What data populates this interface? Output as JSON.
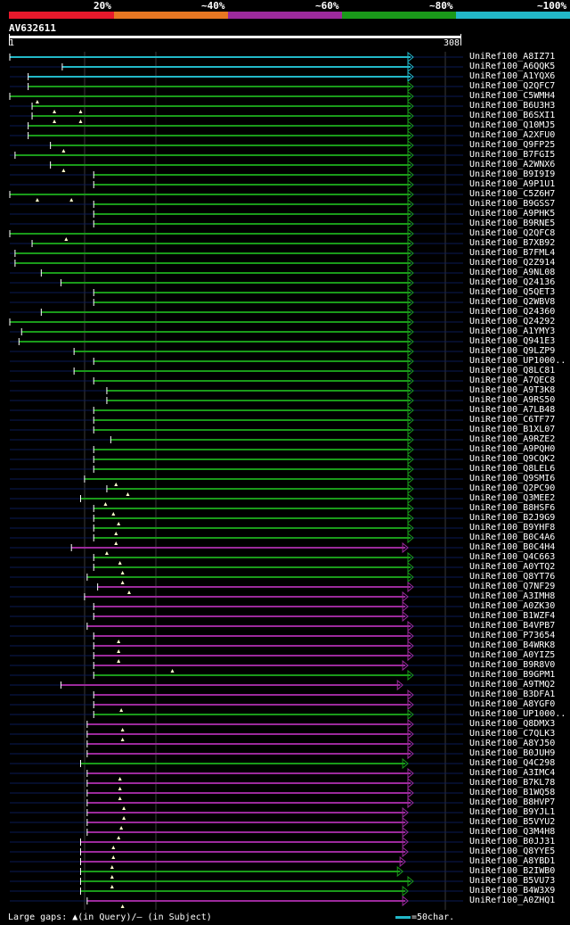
{
  "chart_data": {
    "type": "alignment-overview",
    "query": "AV632611",
    "query_start": 1,
    "query_end": 308,
    "legend": [
      {
        "label": "20%",
        "color": "#e8192c"
      },
      {
        "label": "~40%",
        "color": "#e87722"
      },
      {
        "label": "~60%",
        "color": "#9c2a9c"
      },
      {
        "label": "~80%",
        "color": "#1a9a1a"
      },
      {
        "label": "~100%",
        "color": "#22b8c8"
      }
    ],
    "hits": [
      {
        "name": "UniRef100_A8IZ71",
        "start": 1,
        "end": 308,
        "cls": 4,
        "marks": []
      },
      {
        "name": "UniRef100_A6QQK5",
        "start": 41,
        "end": 308,
        "cls": 4,
        "marks": []
      },
      {
        "name": "UniRef100_A1YQX6",
        "start": 15,
        "end": 308,
        "cls": 4,
        "marks": []
      },
      {
        "name": "UniRef100_Q2QFC7",
        "start": 15,
        "end": 308,
        "cls": 3,
        "marks": []
      },
      {
        "name": "UniRef100_C5WMH4",
        "start": 1,
        "end": 308,
        "cls": 3,
        "marks": [
          22
        ]
      },
      {
        "name": "UniRef100_B6U3H3",
        "start": 18,
        "end": 308,
        "cls": 3,
        "marks": [
          35,
          55
        ]
      },
      {
        "name": "UniRef100_B6SXI1",
        "start": 18,
        "end": 308,
        "cls": 3,
        "marks": [
          35,
          55
        ]
      },
      {
        "name": "UniRef100_Q10MJ5",
        "start": 15,
        "end": 308,
        "cls": 3,
        "marks": []
      },
      {
        "name": "UniRef100_A2XFU0",
        "start": 15,
        "end": 308,
        "cls": 3,
        "marks": []
      },
      {
        "name": "UniRef100_Q9FP25",
        "start": 32,
        "end": 308,
        "cls": 3,
        "marks": [
          42
        ]
      },
      {
        "name": "UniRef100_B7FGI5",
        "start": 5,
        "end": 308,
        "cls": 3,
        "marks": []
      },
      {
        "name": "UniRef100_A2WNX6",
        "start": 32,
        "end": 308,
        "cls": 3,
        "marks": [
          42
        ]
      },
      {
        "name": "UniRef100_B9I9I9",
        "start": 65,
        "end": 308,
        "cls": 3,
        "marks": []
      },
      {
        "name": "UniRef100_A9P1U1",
        "start": 65,
        "end": 308,
        "cls": 3,
        "marks": []
      },
      {
        "name": "UniRef100_C5Z6H7",
        "start": 1,
        "end": 308,
        "cls": 3,
        "marks": [
          22,
          48
        ]
      },
      {
        "name": "UniRef100_B9GSS7",
        "start": 65,
        "end": 308,
        "cls": 3,
        "marks": []
      },
      {
        "name": "UniRef100_A9PHK5",
        "start": 65,
        "end": 308,
        "cls": 3,
        "marks": []
      },
      {
        "name": "UniRef100_B9RNE5",
        "start": 65,
        "end": 308,
        "cls": 3,
        "marks": []
      },
      {
        "name": "UniRef100_Q2QFC8",
        "start": 1,
        "end": 308,
        "cls": 3,
        "marks": [
          44
        ]
      },
      {
        "name": "UniRef100_B7XB92",
        "start": 18,
        "end": 308,
        "cls": 3,
        "marks": []
      },
      {
        "name": "UniRef100_B7FML4",
        "start": 5,
        "end": 308,
        "cls": 3,
        "marks": []
      },
      {
        "name": "UniRef100_Q2Z914",
        "start": 5,
        "end": 308,
        "cls": 3,
        "marks": []
      },
      {
        "name": "UniRef100_A9NL08",
        "start": 25,
        "end": 308,
        "cls": 3,
        "marks": []
      },
      {
        "name": "UniRef100_Q24136",
        "start": 40,
        "end": 308,
        "cls": 3,
        "marks": []
      },
      {
        "name": "UniRef100_Q5QET3",
        "start": 65,
        "end": 308,
        "cls": 3,
        "marks": []
      },
      {
        "name": "UniRef100_Q2WBV8",
        "start": 65,
        "end": 308,
        "cls": 3,
        "marks": []
      },
      {
        "name": "UniRef100_Q24360",
        "start": 25,
        "end": 308,
        "cls": 3,
        "marks": []
      },
      {
        "name": "UniRef100_Q24292",
        "start": 1,
        "end": 308,
        "cls": 3,
        "marks": []
      },
      {
        "name": "UniRef100_A1YMY3",
        "start": 10,
        "end": 308,
        "cls": 3,
        "marks": []
      },
      {
        "name": "UniRef100_Q941E3",
        "start": 8,
        "end": 308,
        "cls": 3,
        "marks": []
      },
      {
        "name": "UniRef100_Q9LZP9",
        "start": 50,
        "end": 308,
        "cls": 3,
        "marks": []
      },
      {
        "name": "UniRef100_UP1000..",
        "start": 65,
        "end": 308,
        "cls": 3,
        "marks": []
      },
      {
        "name": "UniRef100_Q8LC81",
        "start": 50,
        "end": 308,
        "cls": 3,
        "marks": []
      },
      {
        "name": "UniRef100_A7QEC8",
        "start": 65,
        "end": 308,
        "cls": 3,
        "marks": []
      },
      {
        "name": "UniRef100_A9T3K8",
        "start": 75,
        "end": 308,
        "cls": 3,
        "marks": []
      },
      {
        "name": "UniRef100_A9RS50",
        "start": 75,
        "end": 308,
        "cls": 3,
        "marks": []
      },
      {
        "name": "UniRef100_A7LB48",
        "start": 65,
        "end": 308,
        "cls": 3,
        "marks": []
      },
      {
        "name": "UniRef100_C6TF77",
        "start": 65,
        "end": 308,
        "cls": 3,
        "marks": []
      },
      {
        "name": "UniRef100_B1XL07",
        "start": 65,
        "end": 308,
        "cls": 3,
        "marks": []
      },
      {
        "name": "UniRef100_A9RZE2",
        "start": 78,
        "end": 308,
        "cls": 3,
        "marks": []
      },
      {
        "name": "UniRef100_A9PQH0",
        "start": 65,
        "end": 308,
        "cls": 3,
        "marks": []
      },
      {
        "name": "UniRef100_Q9CQK2",
        "start": 65,
        "end": 308,
        "cls": 3,
        "marks": []
      },
      {
        "name": "UniRef100_Q8LEL6",
        "start": 65,
        "end": 308,
        "cls": 3,
        "marks": []
      },
      {
        "name": "UniRef100_Q9SMI6",
        "start": 58,
        "end": 308,
        "cls": 3,
        "marks": [
          82
        ]
      },
      {
        "name": "UniRef100_Q2PC90",
        "start": 75,
        "end": 308,
        "cls": 3,
        "marks": [
          91
        ]
      },
      {
        "name": "UniRef100_Q3MEE2",
        "start": 55,
        "end": 308,
        "cls": 3,
        "marks": [
          74
        ]
      },
      {
        "name": "UniRef100_B8HSF6",
        "start": 65,
        "end": 308,
        "cls": 3,
        "marks": [
          80
        ]
      },
      {
        "name": "UniRef100_B2J9G9",
        "start": 65,
        "end": 308,
        "cls": 3,
        "marks": [
          84
        ]
      },
      {
        "name": "UniRef100_B9YHF8",
        "start": 65,
        "end": 308,
        "cls": 3,
        "marks": [
          82
        ]
      },
      {
        "name": "UniRef100_B0C4A6",
        "start": 65,
        "end": 308,
        "cls": 3,
        "marks": [
          82
        ]
      },
      {
        "name": "UniRef100_B0C4H4",
        "start": 48,
        "end": 304,
        "cls": 2,
        "marks": [
          75
        ]
      },
      {
        "name": "UniRef100_Q4C663",
        "start": 65,
        "end": 308,
        "cls": 3,
        "marks": [
          85
        ]
      },
      {
        "name": "UniRef100_A0YTQ2",
        "start": 65,
        "end": 308,
        "cls": 3,
        "marks": [
          87
        ]
      },
      {
        "name": "UniRef100_Q8YT76",
        "start": 60,
        "end": 308,
        "cls": 3,
        "marks": [
          87
        ]
      },
      {
        "name": "UniRef100_Q7NF29",
        "start": 68,
        "end": 308,
        "cls": 2,
        "marks": [
          92
        ]
      },
      {
        "name": "UniRef100_A3IMH8",
        "start": 58,
        "end": 304,
        "cls": 2,
        "marks": []
      },
      {
        "name": "UniRef100_A0ZK30",
        "start": 65,
        "end": 304,
        "cls": 2,
        "marks": []
      },
      {
        "name": "UniRef100_B1WZF4",
        "start": 65,
        "end": 304,
        "cls": 2,
        "marks": []
      },
      {
        "name": "UniRef100_B4VPB7",
        "start": 60,
        "end": 308,
        "cls": 2,
        "marks": []
      },
      {
        "name": "UniRef100_P73654",
        "start": 65,
        "end": 308,
        "cls": 2,
        "marks": [
          84
        ]
      },
      {
        "name": "UniRef100_B4WRK8",
        "start": 65,
        "end": 308,
        "cls": 2,
        "marks": [
          84
        ]
      },
      {
        "name": "UniRef100_A0YIZ5",
        "start": 65,
        "end": 308,
        "cls": 2,
        "marks": [
          84
        ]
      },
      {
        "name": "UniRef100_B9R8V0",
        "start": 65,
        "end": 304,
        "cls": 2,
        "marks": [
          125
        ]
      },
      {
        "name": "UniRef100_B9GPM1",
        "start": 65,
        "end": 308,
        "cls": 3,
        "marks": []
      },
      {
        "name": "UniRef100_A9TMQ2",
        "start": 40,
        "end": 300,
        "cls": 2,
        "marks": []
      },
      {
        "name": "UniRef100_B3DFA1",
        "start": 65,
        "end": 308,
        "cls": 2,
        "marks": []
      },
      {
        "name": "UniRef100_A8YGF0",
        "start": 65,
        "end": 308,
        "cls": 2,
        "marks": [
          86
        ]
      },
      {
        "name": "UniRef100_UP1000..",
        "start": 65,
        "end": 308,
        "cls": 3,
        "marks": []
      },
      {
        "name": "UniRef100_Q8DMX3",
        "start": 60,
        "end": 308,
        "cls": 2,
        "marks": [
          87
        ]
      },
      {
        "name": "UniRef100_C7QLK3",
        "start": 60,
        "end": 308,
        "cls": 2,
        "marks": [
          87
        ]
      },
      {
        "name": "UniRef100_A8YJ50",
        "start": 60,
        "end": 308,
        "cls": 2,
        "marks": []
      },
      {
        "name": "UniRef100_B0JUH9",
        "start": 60,
        "end": 308,
        "cls": 2,
        "marks": []
      },
      {
        "name": "UniRef100_Q4C298",
        "start": 55,
        "end": 304,
        "cls": 3,
        "marks": []
      },
      {
        "name": "UniRef100_A3IMC4",
        "start": 60,
        "end": 308,
        "cls": 2,
        "marks": [
          85
        ]
      },
      {
        "name": "UniRef100_B7KL78",
        "start": 60,
        "end": 308,
        "cls": 2,
        "marks": [
          85
        ]
      },
      {
        "name": "UniRef100_B1WQ58",
        "start": 60,
        "end": 308,
        "cls": 2,
        "marks": [
          85
        ]
      },
      {
        "name": "UniRef100_B8HVP7",
        "start": 60,
        "end": 308,
        "cls": 2,
        "marks": [
          88
        ]
      },
      {
        "name": "UniRef100_B9YJL1",
        "start": 60,
        "end": 304,
        "cls": 2,
        "marks": [
          88
        ]
      },
      {
        "name": "UniRef100_B5VYU2",
        "start": 60,
        "end": 304,
        "cls": 2,
        "marks": [
          86
        ]
      },
      {
        "name": "UniRef100_Q3M4H8",
        "start": 60,
        "end": 304,
        "cls": 2,
        "marks": [
          84
        ]
      },
      {
        "name": "UniRef100_B0JJ31",
        "start": 55,
        "end": 304,
        "cls": 2,
        "marks": [
          80
        ]
      },
      {
        "name": "UniRef100_Q8YYE5",
        "start": 55,
        "end": 304,
        "cls": 2,
        "marks": [
          80
        ]
      },
      {
        "name": "UniRef100_A8YBD1",
        "start": 55,
        "end": 302,
        "cls": 2,
        "marks": [
          79
        ]
      },
      {
        "name": "UniRef100_B2IWB0",
        "start": 55,
        "end": 300,
        "cls": 3,
        "marks": [
          79
        ]
      },
      {
        "name": "UniRef100_B5VU73",
        "start": 55,
        "end": 308,
        "cls": 3,
        "marks": [
          79
        ]
      },
      {
        "name": "UniRef100_B4W3X9",
        "start": 55,
        "end": 304,
        "cls": 3,
        "marks": []
      },
      {
        "name": "UniRef100_A0ZHQ1",
        "start": 60,
        "end": 304,
        "cls": 2,
        "marks": [
          87
        ]
      }
    ]
  },
  "footer": {
    "gaps_text": "Large gaps: ▲(in Query)/– (in Subject)",
    "scale_text": "=50char."
  }
}
